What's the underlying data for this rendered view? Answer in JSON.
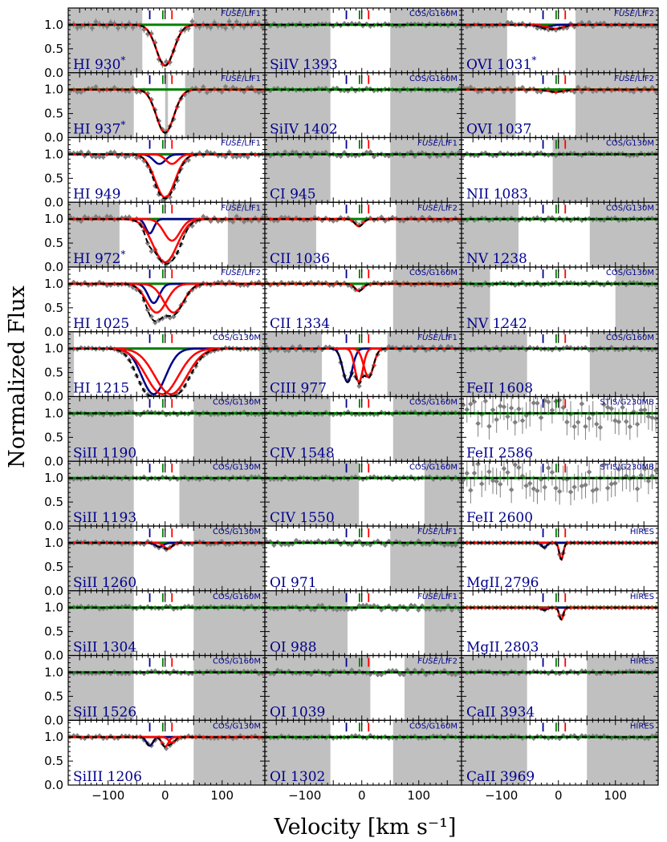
{
  "chart_data": {
    "type": "line",
    "ylabel": "Normalized Flux",
    "xlabel": "Velocity [km s⁻¹]",
    "xlim": [
      -170,
      175
    ],
    "ylim": [
      0.0,
      1.35
    ],
    "xticks": [
      -100,
      0,
      100
    ],
    "xtick_labels": [
      "−100",
      "0",
      "100"
    ],
    "yticks": [
      0.0,
      0.5,
      1.0
    ],
    "ytick_labels": [
      "0.0",
      "0.5",
      "1.0"
    ],
    "component_markers_kms": {
      "blue": -27,
      "green": -4,
      "red": 12
    },
    "colors": {
      "data": "#808080",
      "mask": "#c0c0c0",
      "total_model": "#000000",
      "continuum": "#008000",
      "component_1": "#00008b",
      "component_2": "#ff0000",
      "label": "#00008b"
    },
    "panels": [
      {
        "col": 0,
        "row": 0,
        "ion": "HI 930",
        "star": true,
        "inst": "FUSE/LIF1",
        "italic": true,
        "min": 0.15,
        "comps": [
          {
            "c": "r",
            "v": 0,
            "d": 0.85,
            "w": 22
          }
        ],
        "mask": [
          [
            -170,
            -40
          ],
          [
            50,
            175
          ]
        ],
        "noise": 0.08
      },
      {
        "col": 0,
        "row": 1,
        "ion": "HI 937",
        "star": true,
        "inst": "FUSE/LIF1",
        "italic": true,
        "comps": [
          {
            "c": "r",
            "v": 0,
            "d": 0.9,
            "w": 22
          }
        ],
        "mask": [
          [
            -170,
            -55
          ],
          [
            0,
            5
          ],
          [
            35,
            175
          ]
        ],
        "noise": 0.06
      },
      {
        "col": 0,
        "row": 2,
        "ion": "HI 949",
        "star": false,
        "inst": "FUSE/LIF1",
        "italic": true,
        "comps": [
          {
            "c": "b",
            "v": -10,
            "d": 0.2,
            "w": 15
          },
          {
            "c": "r",
            "v": 12,
            "d": 0.2,
            "w": 15
          },
          {
            "c": "r",
            "v": 0,
            "d": 0.9,
            "w": 25
          }
        ],
        "mask": [],
        "noise": 0.06
      },
      {
        "col": 0,
        "row": 3,
        "ion": "HI 972",
        "star": true,
        "inst": "FUSE/LIF1",
        "italic": true,
        "comps": [
          {
            "c": "b",
            "v": -27,
            "d": 0.3,
            "w": 10
          },
          {
            "c": "r",
            "v": 12,
            "d": 0.45,
            "w": 20
          },
          {
            "c": "r",
            "v": 0,
            "d": 0.9,
            "w": 30
          }
        ],
        "mask": [
          [
            -170,
            -80
          ],
          [
            110,
            175
          ]
        ],
        "noise": 0.06
      },
      {
        "col": 0,
        "row": 4,
        "ion": "HI 1025",
        "star": false,
        "inst": "FUSE/LIF2",
        "italic": true,
        "comps": [
          {
            "c": "b",
            "v": -20,
            "d": 0.4,
            "w": 14
          },
          {
            "c": "r",
            "v": -15,
            "d": 0.6,
            "w": 25
          },
          {
            "c": "r",
            "v": 15,
            "d": 0.6,
            "w": 25
          }
        ],
        "mask": [],
        "noise": 0.04
      },
      {
        "col": 0,
        "row": 5,
        "ion": "HI 1215",
        "star": false,
        "inst": "COS/G130M",
        "italic": false,
        "comps": [
          {
            "c": "b",
            "v": -20,
            "d": 0.95,
            "w": 30
          },
          {
            "c": "r",
            "v": -5,
            "d": 0.95,
            "w": 40
          },
          {
            "c": "r",
            "v": 10,
            "d": 0.95,
            "w": 40
          }
        ],
        "mask": [
          [
            -170,
            -160
          ],
          [
            165,
            175
          ]
        ],
        "noise": 0.02
      },
      {
        "col": 0,
        "row": 6,
        "ion": "SiII 1190",
        "star": false,
        "inst": "COS/G130M",
        "italic": false,
        "comps": [],
        "mask": [
          [
            -170,
            -55
          ],
          [
            50,
            175
          ]
        ],
        "noise": 0.03
      },
      {
        "col": 0,
        "row": 7,
        "ion": "SiII 1193",
        "star": false,
        "inst": "COS/G130M",
        "italic": false,
        "comps": [],
        "mask": [
          [
            -170,
            -55
          ],
          [
            25,
            175
          ]
        ],
        "noise": 0.03
      },
      {
        "col": 0,
        "row": 8,
        "ion": "SiII 1260",
        "star": false,
        "inst": "COS/G130M",
        "italic": false,
        "comps": [
          {
            "c": "b",
            "v": -10,
            "d": 0.08,
            "w": 10
          },
          {
            "c": "r",
            "v": 5,
            "d": 0.12,
            "w": 10
          }
        ],
        "mask": [
          [
            -170,
            -55
          ],
          [
            50,
            175
          ]
        ],
        "noise": 0.03
      },
      {
        "col": 0,
        "row": 9,
        "ion": "SiII 1304",
        "star": false,
        "inst": "COS/G160M",
        "italic": false,
        "comps": [],
        "mask": [
          [
            -170,
            -55
          ],
          [
            50,
            175
          ]
        ],
        "noise": 0.03
      },
      {
        "col": 0,
        "row": 10,
        "ion": "SiII 1526",
        "star": false,
        "inst": "COS/G160M",
        "italic": false,
        "comps": [],
        "mask": [
          [
            -170,
            -55
          ],
          [
            50,
            175
          ]
        ],
        "noise": 0.03
      },
      {
        "col": 0,
        "row": 11,
        "ion": "SiIII 1206",
        "star": false,
        "inst": "COS/G130M",
        "italic": false,
        "comps": [
          {
            "c": "b",
            "v": -27,
            "d": 0.18,
            "w": 8
          },
          {
            "c": "r",
            "v": 0,
            "d": 0.2,
            "w": 8
          },
          {
            "c": "r",
            "v": 12,
            "d": 0.12,
            "w": 8
          }
        ],
        "mask": [
          [
            50,
            175
          ]
        ],
        "noise": 0.03
      },
      {
        "col": 1,
        "row": 0,
        "ion": "SiIV 1393",
        "star": false,
        "inst": "COS/G160M",
        "italic": false,
        "comps": [],
        "mask": [
          [
            -170,
            -55
          ],
          [
            50,
            175
          ]
        ],
        "noise": 0.03
      },
      {
        "col": 1,
        "row": 1,
        "ion": "SiIV 1402",
        "star": false,
        "inst": "COS/G160M",
        "italic": false,
        "comps": [],
        "mask": [
          [
            -170,
            -55
          ],
          [
            50,
            175
          ]
        ],
        "noise": 0.03
      },
      {
        "col": 1,
        "row": 2,
        "ion": "CI 945",
        "star": false,
        "inst": "FUSE/LIF1",
        "italic": true,
        "comps": [],
        "mask": [
          [
            -170,
            -55
          ],
          [
            50,
            175
          ]
        ],
        "noise": 0.05
      },
      {
        "col": 1,
        "row": 3,
        "ion": "CII 1036",
        "star": false,
        "inst": "FUSE/LIF2",
        "italic": true,
        "comps": [
          {
            "c": "r",
            "v": -5,
            "d": 0.15,
            "w": 10
          }
        ],
        "mask": [
          [
            -170,
            -80
          ],
          [
            60,
            175
          ]
        ],
        "noise": 0.04
      },
      {
        "col": 1,
        "row": 4,
        "ion": "CII 1334",
        "star": false,
        "inst": "COS/G160M",
        "italic": false,
        "comps": [
          {
            "c": "r",
            "v": -5,
            "d": 0.15,
            "w": 10
          }
        ],
        "mask": [
          [
            55,
            175
          ]
        ],
        "noise": 0.03
      },
      {
        "col": 1,
        "row": 5,
        "ion": "CIII 977",
        "star": false,
        "inst": "FUSE/LIF1",
        "italic": true,
        "comps": [
          {
            "c": "b",
            "v": -25,
            "d": 0.7,
            "w": 12
          },
          {
            "c": "r",
            "v": -5,
            "d": 0.7,
            "w": 10
          },
          {
            "c": "r",
            "v": 12,
            "d": 0.6,
            "w": 12
          }
        ],
        "mask": [
          [
            -170,
            -70
          ],
          [
            45,
            175
          ]
        ],
        "noise": 0.05
      },
      {
        "col": 1,
        "row": 6,
        "ion": "CIV 1548",
        "star": false,
        "inst": "COS/G160M",
        "italic": false,
        "comps": [],
        "mask": [
          [
            -170,
            -55
          ],
          [
            55,
            175
          ]
        ],
        "noise": 0.03
      },
      {
        "col": 1,
        "row": 7,
        "ion": "CIV 1550",
        "star": false,
        "inst": "COS/G160M",
        "italic": false,
        "comps": [],
        "mask": [
          [
            -170,
            -5
          ],
          [
            110,
            175
          ]
        ],
        "noise": 0.03
      },
      {
        "col": 1,
        "row": 8,
        "ion": "OI 971",
        "star": false,
        "inst": "FUSE/LIF1",
        "italic": true,
        "comps": [],
        "mask": [
          [
            50,
            175
          ]
        ],
        "noise": 0.05
      },
      {
        "col": 1,
        "row": 9,
        "ion": "OI 988",
        "star": false,
        "inst": "FUSE/LIF1",
        "italic": true,
        "comps": [],
        "mask": [
          [
            -170,
            -25
          ],
          [
            110,
            175
          ]
        ],
        "noise": 0.05
      },
      {
        "col": 1,
        "row": 10,
        "ion": "OI 1039",
        "star": false,
        "inst": "FUSE/LIF2",
        "italic": true,
        "comps": [],
        "mask": [
          [
            -170,
            15
          ],
          [
            75,
            175
          ]
        ],
        "noise": 0.05
      },
      {
        "col": 1,
        "row": 11,
        "ion": "OI 1302",
        "star": false,
        "inst": "COS/G160M",
        "italic": false,
        "comps": [],
        "mask": [
          [
            -170,
            -55
          ],
          [
            55,
            175
          ]
        ],
        "noise": 0.03
      },
      {
        "col": 2,
        "row": 0,
        "ion": "OVI 1031",
        "star": true,
        "inst": "FUSE/LIF2",
        "italic": true,
        "comps": [
          {
            "c": "b",
            "v": -25,
            "d": 0.05,
            "w": 15
          },
          {
            "c": "r",
            "v": -5,
            "d": 0.08,
            "w": 20
          }
        ],
        "mask": [
          [
            -170,
            -90
          ],
          [
            30,
            175
          ]
        ],
        "noise": 0.05
      },
      {
        "col": 2,
        "row": 1,
        "ion": "OVI 1037",
        "star": false,
        "inst": "FUSE/LIF2",
        "italic": true,
        "comps": [
          {
            "c": "r",
            "v": -5,
            "d": 0.05,
            "w": 20
          }
        ],
        "mask": [
          [
            -170,
            -75
          ],
          [
            30,
            175
          ]
        ],
        "noise": 0.05
      },
      {
        "col": 2,
        "row": 2,
        "ion": "NII 1083",
        "star": false,
        "inst": "COS/G130M",
        "italic": false,
        "comps": [],
        "mask": [
          [
            -10,
            175
          ]
        ],
        "noise": 0.03
      },
      {
        "col": 2,
        "row": 3,
        "ion": "NV 1238",
        "star": false,
        "inst": "COS/G130M",
        "italic": false,
        "comps": [],
        "mask": [
          [
            -170,
            -70
          ],
          [
            55,
            175
          ]
        ],
        "noise": 0.03
      },
      {
        "col": 2,
        "row": 4,
        "ion": "NV 1242",
        "star": false,
        "inst": "COS/G130M",
        "italic": false,
        "comps": [],
        "mask": [
          [
            -170,
            -120
          ],
          [
            100,
            175
          ]
        ],
        "noise": 0.03
      },
      {
        "col": 2,
        "row": 5,
        "ion": "FeII 1608",
        "star": false,
        "inst": "COS/G160M",
        "italic": false,
        "comps": [],
        "mask": [
          [
            -170,
            -55
          ],
          [
            55,
            175
          ]
        ],
        "noise": 0.03
      },
      {
        "col": 2,
        "row": 6,
        "ion": "FeII 2586",
        "star": false,
        "inst": "STIS/G230MB",
        "italic": false,
        "comps": [],
        "mask": [],
        "noise": 0.3
      },
      {
        "col": 2,
        "row": 7,
        "ion": "FeII 2600",
        "star": false,
        "inst": "STIS/G230MB",
        "italic": false,
        "comps": [],
        "mask": [],
        "noise": 0.3
      },
      {
        "col": 2,
        "row": 8,
        "ion": "MgII 2796",
        "star": false,
        "inst": "HIRES",
        "italic": false,
        "comps": [
          {
            "c": "b",
            "v": -25,
            "d": 0.1,
            "w": 6
          },
          {
            "c": "r",
            "v": 5,
            "d": 0.35,
            "w": 5
          }
        ],
        "mask": [],
        "noise": 0.0
      },
      {
        "col": 2,
        "row": 9,
        "ion": "MgII 2803",
        "star": false,
        "inst": "HIRES",
        "italic": false,
        "comps": [
          {
            "c": "b",
            "v": -25,
            "d": 0.05,
            "w": 6
          },
          {
            "c": "r",
            "v": 5,
            "d": 0.25,
            "w": 5
          }
        ],
        "mask": [],
        "noise": 0.0
      },
      {
        "col": 2,
        "row": 10,
        "ion": "CaII 3934",
        "star": false,
        "inst": "HIRES",
        "italic": false,
        "comps": [],
        "mask": [
          [
            -170,
            -55
          ],
          [
            50,
            175
          ]
        ],
        "noise": 0.03
      },
      {
        "col": 2,
        "row": 11,
        "ion": "CaII 3969",
        "star": false,
        "inst": "HIRES",
        "italic": false,
        "comps": [],
        "mask": [
          [
            -170,
            -55
          ],
          [
            50,
            175
          ]
        ],
        "noise": 0.03
      }
    ]
  }
}
